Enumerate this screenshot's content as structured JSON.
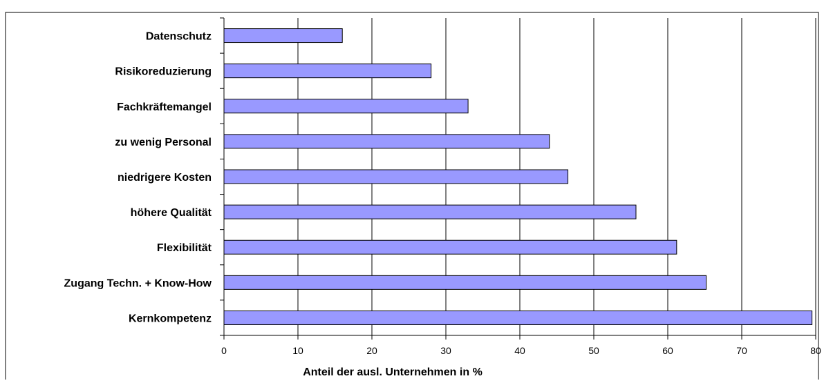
{
  "chart_data": {
    "type": "bar",
    "orientation": "horizontal",
    "categories": [
      "Datenschutz",
      "Risikoreduzierung",
      "Fachkräftemangel",
      "zu wenig Personal",
      "niedrigere Kosten",
      "höhere Qualität",
      "Flexibilität",
      "Zugang Techn. + Know-How",
      "Kernkompetenz"
    ],
    "values": [
      16,
      28,
      33,
      44,
      46.5,
      55.7,
      61.2,
      65.2,
      79.5
    ],
    "title": "",
    "xlabel": "Anteil der ausl. Unternehmen in %",
    "ylabel": "",
    "xlim": [
      0,
      80
    ],
    "xticks": [
      "0",
      "10",
      "20",
      "30",
      "40",
      "50",
      "60",
      "70",
      "80"
    ],
    "grid": "vertical",
    "legend": "none",
    "colors": {
      "bar_fill": "#9999ff",
      "bar_stroke": "#000000",
      "grid": "#000000",
      "frame": "#000000"
    }
  }
}
